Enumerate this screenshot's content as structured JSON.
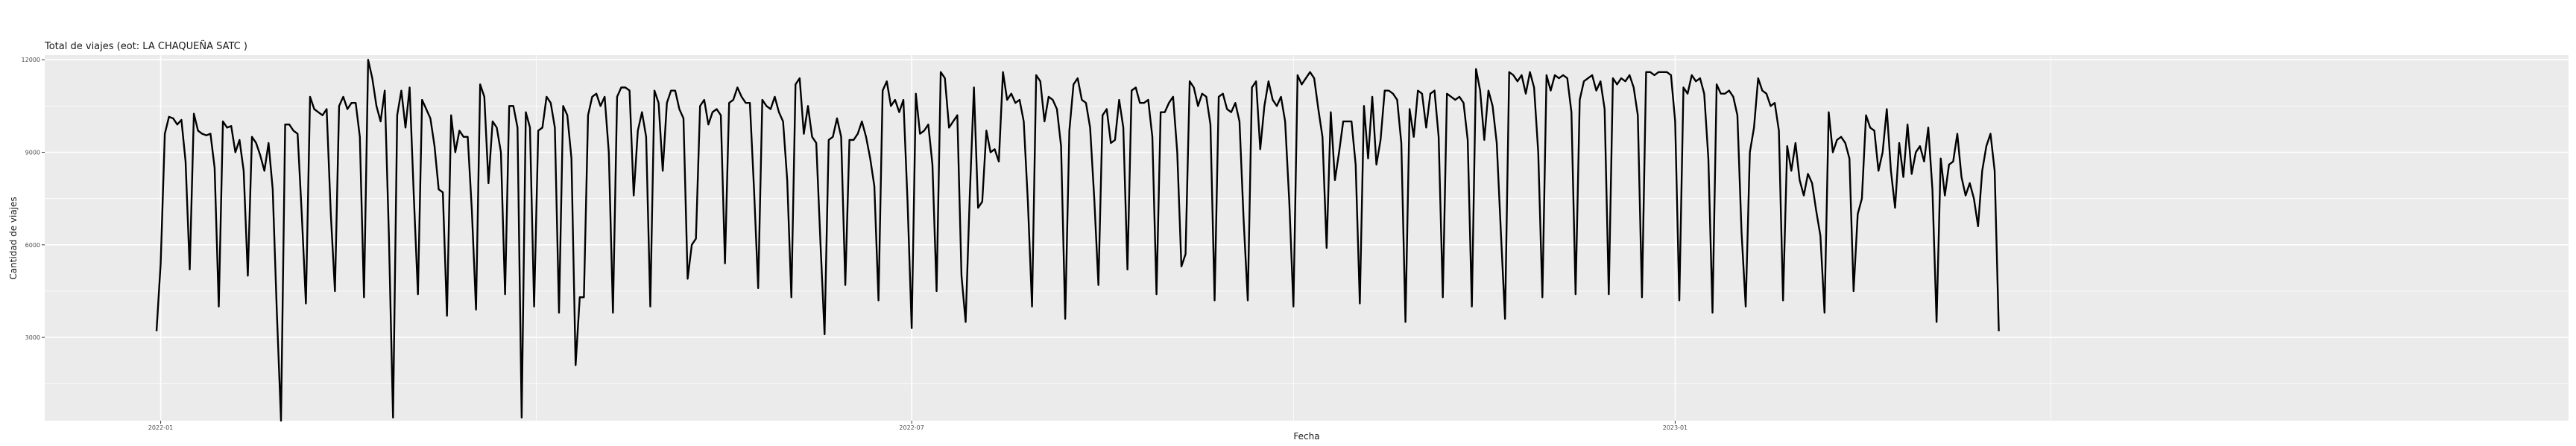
{
  "chart_data": {
    "type": "line",
    "title": "Total de viajes (eot: LA CHAQUEÑA SATC )",
    "xlabel": "Fecha",
    "ylabel": "Cantidad de viajes",
    "x_ticks": [
      "2022-01",
      "2022-07",
      "2023-01"
    ],
    "y_ticks": [
      3000,
      6000,
      9000,
      12000
    ],
    "ylim": [
      300,
      12150
    ],
    "x_start": "2021-12-31",
    "x_end": "2023-07-01",
    "grid": true,
    "background": "#ebebeb",
    "line_color": "#000000",
    "series": [
      {
        "name": "",
        "values": [
          3200,
          5400,
          9600,
          10150,
          10100,
          9900,
          10050,
          8700,
          5200,
          10250,
          9700,
          9600,
          9550,
          9600,
          8500,
          4000,
          10000,
          9800,
          9850,
          9000,
          9400,
          8400,
          5000,
          9500,
          9300,
          8900,
          8400,
          9300,
          7800,
          3800,
          300,
          9900,
          9900,
          9700,
          9600,
          7000,
          4100,
          10800,
          10400,
          10300,
          10200,
          10400,
          7000,
          4500,
          10500,
          10800,
          10400,
          10600,
          10600,
          9500,
          4300,
          12000,
          11400,
          10500,
          10000,
          11000,
          6300,
          400,
          10200,
          11000,
          9800,
          11100,
          7600,
          4400,
          10700,
          10400,
          10100,
          9200,
          7800,
          7700,
          3700,
          10200,
          9000,
          9700,
          9500,
          9500,
          7100,
          3900,
          11200,
          10800,
          8000,
          10000,
          9800,
          9000,
          4400,
          10500,
          10500,
          9800,
          400,
          10300,
          9800,
          4000,
          9700,
          9800,
          10800,
          10600,
          9800,
          3800,
          10500,
          10200,
          8800,
          2100,
          4300,
          4300,
          10200,
          10800,
          10900,
          10500,
          10800,
          9000,
          3800,
          10800,
          11100,
          11100,
          11000,
          7600,
          9700,
          10300,
          9500,
          4000,
          11000,
          10600,
          8400,
          10600,
          11000,
          11000,
          10400,
          10100,
          4900,
          6000,
          6200,
          10500,
          10700,
          9900,
          10300,
          10400,
          10200,
          5400,
          10600,
          10700,
          11100,
          10800,
          10600,
          10600,
          7800,
          4600,
          10700,
          10500,
          10400,
          10800,
          10300,
          10000,
          8100,
          4300,
          11200,
          11400,
          9600,
          10500,
          9500,
          9300,
          6100,
          3100,
          9400,
          9500,
          10100,
          9500,
          4700,
          9400,
          9400,
          9600,
          10000,
          9500,
          8800,
          7900,
          4200,
          11000,
          11300,
          10500,
          10700,
          10300,
          10700,
          7400,
          3300,
          10900,
          9600,
          9700,
          9900,
          8600,
          4500,
          11600,
          11400,
          9800,
          10000,
          10200,
          5000,
          3500,
          7600,
          11100,
          7200,
          7400,
          9700,
          9000,
          9100,
          8700,
          11600,
          10700,
          10900,
          10600,
          10700,
          10000,
          7400,
          4000,
          11500,
          11300,
          10000,
          10800,
          10700,
          10400,
          9200,
          3600,
          9700,
          11200,
          11400,
          10700,
          10600,
          9800,
          7500,
          4700,
          10200,
          10400,
          9300,
          9400,
          10700,
          9800,
          5200,
          11000,
          11100,
          10600,
          10600,
          10700,
          9500,
          4400,
          10300,
          10300,
          10600,
          10800,
          9000,
          5300,
          5700,
          11300,
          11100,
          10500,
          10900,
          10800,
          9900,
          4200,
          10800,
          10900,
          10400,
          10300,
          10600,
          10000,
          6800,
          4200,
          11100,
          11300,
          9100,
          10500,
          11300,
          10700,
          10500,
          10800,
          10000,
          7400,
          4000,
          11500,
          11200,
          11400,
          11600,
          11400,
          10400,
          9500,
          5900,
          10300,
          8100,
          9000,
          10000,
          10000,
          10000,
          8600,
          4100,
          10500,
          8800,
          10800,
          8600,
          9400,
          11000,
          11000,
          10900,
          10700,
          9300,
          3500,
          10400,
          9500,
          11000,
          10900,
          9800,
          10900,
          11000,
          9500,
          4300,
          10900,
          10800,
          10700,
          10800,
          10600,
          9400,
          4000,
          11700,
          11000,
          9400,
          11000,
          10500,
          9300,
          6400,
          3600,
          11600,
          11500,
          11300,
          11500,
          10900,
          11600,
          11100,
          9000,
          4300,
          11500,
          11000,
          11500,
          11400,
          11500,
          11400,
          10300,
          4400,
          10700,
          11300,
          11400,
          11500,
          11000,
          11300,
          10400,
          4400,
          11400,
          11200,
          11400,
          11300,
          11500,
          11100,
          10200,
          4300,
          11600,
          11600,
          11500,
          11600,
          11600,
          11600,
          11500,
          10000,
          4200,
          11100,
          10900,
          11500,
          11300,
          11400,
          10900,
          8800,
          3800,
          11200,
          10900,
          10900,
          11000,
          10800,
          10200,
          6400,
          4000,
          9000,
          9800,
          11400,
          11000,
          10900,
          10500,
          10600,
          9700,
          4200,
          9200,
          8400,
          9300,
          8100,
          7600,
          8300,
          8000,
          7100,
          6300,
          3800,
          10300,
          9000,
          9400,
          9500,
          9300,
          8800,
          4500,
          7000,
          7500,
          10200,
          9800,
          9700,
          8400,
          9000,
          10400,
          8400,
          7200,
          9300,
          8200,
          9900,
          8300,
          9000,
          9200,
          8700,
          9800,
          7800,
          3500,
          8800,
          7600,
          8600,
          8700,
          9600,
          8200,
          7600,
          8000,
          7500,
          6600,
          8400,
          9200,
          9600,
          8400,
          3200
        ]
      }
    ]
  }
}
